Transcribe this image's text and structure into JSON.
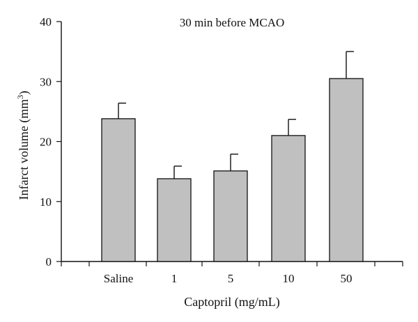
{
  "chart_data": {
    "type": "bar",
    "title": "30 min before MCAO",
    "xlabel": "Captopril (mg/mL)",
    "ylabel": "Infarct volume (mm",
    "ylabel_superscript": "3",
    "ylabel_close": ")",
    "categories": [
      "Saline",
      "1",
      "5",
      "10",
      "50"
    ],
    "values": [
      23.8,
      13.8,
      15.1,
      21.0,
      30.5
    ],
    "errors": [
      2.6,
      2.1,
      2.8,
      2.7,
      4.5
    ],
    "ylim": [
      0,
      40
    ],
    "yticks": [
      0,
      10,
      20,
      30,
      40
    ],
    "ytick_labels": [
      "0",
      "10",
      "20",
      "30",
      "40"
    ],
    "grid": false,
    "bar_color": "#c0c0c0",
    "bar_edge_color": "#111111"
  }
}
